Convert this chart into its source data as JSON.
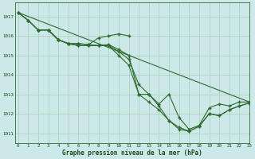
{
  "background_color": "#cce8e8",
  "grid_color": "#aaccbb",
  "line_color": "#2d6a2d",
  "line_straight": {
    "x": [
      0,
      23
    ],
    "y": [
      1017.2,
      1012.6
    ]
  },
  "line_upper": {
    "x": [
      0,
      1,
      2,
      3,
      4,
      5,
      6,
      7,
      8,
      9,
      10,
      11
    ],
    "y": [
      1017.2,
      1016.8,
      1016.3,
      1016.3,
      1015.8,
      1015.6,
      1015.6,
      1015.55,
      1015.9,
      1016.0,
      1016.1,
      1016.0
    ]
  },
  "line_mid": {
    "x": [
      2,
      3,
      4,
      5,
      6,
      7,
      8,
      9,
      10,
      11,
      12,
      13,
      14,
      15,
      16,
      17,
      18,
      19,
      20,
      21,
      22,
      23
    ],
    "y": [
      1016.3,
      1016.3,
      1015.8,
      1015.6,
      1015.6,
      1015.55,
      1015.5,
      1015.55,
      1015.3,
      1015.0,
      1013.0,
      1013.0,
      1012.5,
      1013.0,
      1011.8,
      1011.2,
      1011.4,
      1012.3,
      1012.5,
      1012.4,
      1012.6,
      1012.6
    ]
  },
  "line_steep": {
    "x": [
      0,
      1,
      2,
      3,
      4,
      5,
      6,
      7,
      8,
      9,
      10,
      11,
      12,
      13,
      14,
      15,
      16,
      17,
      18,
      19,
      20,
      21,
      22,
      23
    ],
    "y": [
      1017.2,
      1016.8,
      1016.3,
      1016.3,
      1015.8,
      1015.6,
      1015.5,
      1015.5,
      1015.5,
      1015.5,
      1015.2,
      1014.8,
      1013.5,
      1013.0,
      1012.4,
      1011.65,
      1011.3,
      1011.1,
      1011.35,
      1012.0,
      1011.9,
      1012.2,
      1012.4,
      1012.55
    ]
  },
  "line_steepest": {
    "x": [
      0,
      1,
      2,
      3,
      4,
      5,
      6,
      7,
      8,
      9,
      10,
      11,
      12,
      13,
      14,
      15,
      16,
      17,
      18,
      19,
      20,
      21,
      22,
      23
    ],
    "y": [
      1017.2,
      1016.8,
      1016.3,
      1016.3,
      1015.8,
      1015.6,
      1015.5,
      1015.5,
      1015.5,
      1015.5,
      1015.0,
      1014.5,
      1013.0,
      1012.6,
      1012.2,
      1011.65,
      1011.2,
      1011.1,
      1011.35,
      1012.0,
      1011.9,
      1012.2,
      1012.4,
      1012.55
    ]
  },
  "xlabel": "Graphe pression niveau de la mer (hPa)",
  "ylim": [
    1010.5,
    1017.7
  ],
  "xlim": [
    -0.3,
    23
  ],
  "yticks": [
    1011,
    1012,
    1013,
    1014,
    1015,
    1016,
    1017
  ],
  "xticks": [
    0,
    1,
    2,
    3,
    4,
    5,
    6,
    7,
    8,
    9,
    10,
    11,
    12,
    13,
    14,
    15,
    16,
    17,
    18,
    19,
    20,
    21,
    22,
    23
  ]
}
